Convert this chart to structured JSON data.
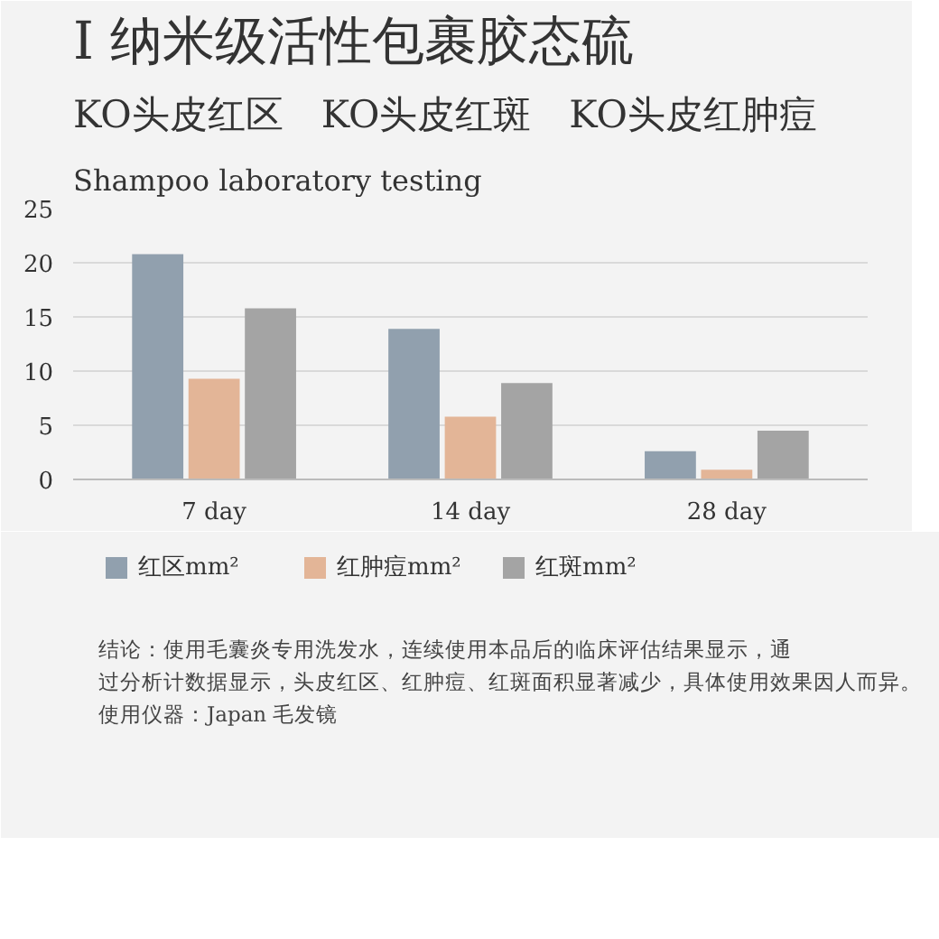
{
  "chart_data": {
    "type": "bar",
    "title": "I 纳米级活性包裹胶态硫",
    "subtitle": "KO头皮红区　KO头皮红斑　KO头皮红肿痘",
    "annotations": [
      "Shampoo laboratory testing",
      "结论：使用毛囊炎专用洗发水，连续使用本品后的临床评估结果显示，通",
      "过分析计数据显示，头皮红区、红肿痘、红斑面积显著减少，具体使用效果因人而异。",
      "使用仪器：Japan 毛发镜"
    ],
    "categories": [
      "7 day",
      "14 day",
      "28 day"
    ],
    "series": [
      {
        "name": "红区mm²",
        "color": "#91a0ae",
        "values": [
          20.8,
          13.9,
          2.6
        ]
      },
      {
        "name": "红肿痘mm²",
        "color": "#e3b597",
        "values": [
          9.3,
          5.8,
          0.9
        ]
      },
      {
        "name": "红斑mm²",
        "color": "#a4a4a4",
        "values": [
          15.8,
          8.9,
          4.5
        ]
      }
    ],
    "ylim": [
      0,
      25
    ],
    "yticks": [
      0,
      5,
      10,
      15,
      20,
      25
    ],
    "grid": "y",
    "legend": "bottom"
  }
}
